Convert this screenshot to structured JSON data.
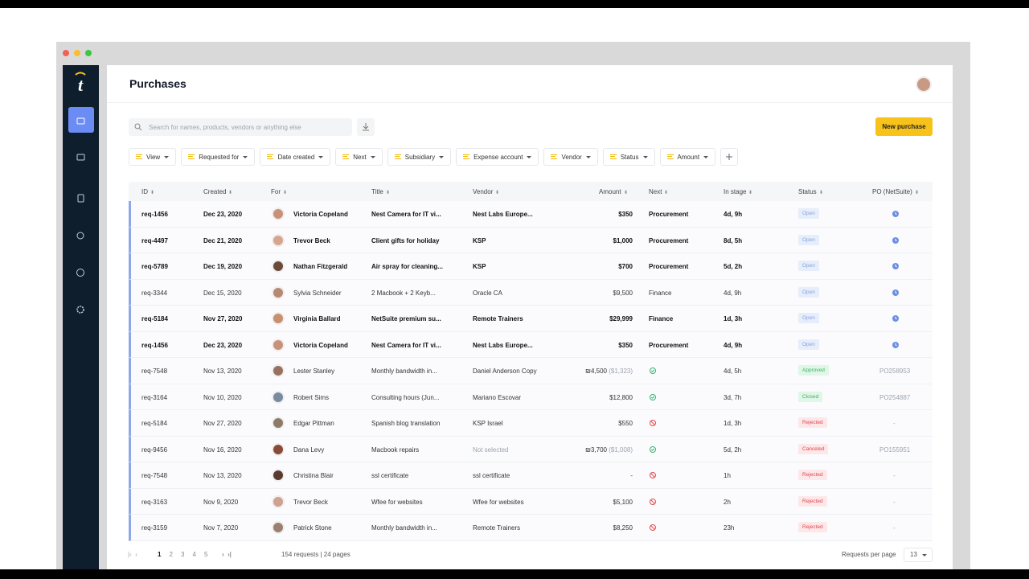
{
  "header": {
    "title": "Purchases"
  },
  "search": {
    "placeholder": "Search for names, products, vendors or anything else"
  },
  "new_button": "New purchase",
  "filters": [
    "View",
    "Requested for",
    "Date created",
    "Next",
    "Subsidiary",
    "Expense account",
    "Vendor",
    "Status",
    "Amount"
  ],
  "table": {
    "columns": [
      "ID",
      "Created",
      "For",
      "Title",
      "Vendor",
      "Amount",
      "Next",
      "In stage",
      "Status",
      "PO (NetSuite)"
    ],
    "rows": [
      {
        "id": "req-1456",
        "created": "Dec 23, 2020",
        "for": "Victoria Copeland",
        "title": "Nest Camera for IT vi...",
        "vendor": "Nest Labs Europe...",
        "amount": "$350",
        "next": "Procurement",
        "in_stage": "4d, 9h",
        "status": "Open"
      },
      {
        "id": "req-4497",
        "created": "Dec 21, 2020",
        "for": "Trevor Beck",
        "title": "Client gifts for holiday",
        "vendor": "KSP",
        "amount": "$1,000",
        "next": "Procurement",
        "in_stage": "8d, 5h",
        "status": "Open"
      },
      {
        "id": "req-5789",
        "created": "Dec 19, 2020",
        "for": "Nathan Fitzgerald",
        "title": "Air spray for cleaning...",
        "vendor": "KSP",
        "amount": "$700",
        "next": "Procurement",
        "in_stage": "5d, 2h",
        "status": "Open"
      },
      {
        "id": "req-3344",
        "created": "Dec 15, 2020",
        "for": "Sylvia Schneider",
        "title": "2 Macbook + 2 Keyb...",
        "vendor": "Oracle CA",
        "amount": "$9,500",
        "next": "Finance",
        "in_stage": "4d, 9h",
        "status": "Open"
      },
      {
        "id": "req-5184",
        "created": "Nov 27, 2020",
        "for": "Virginia Ballard",
        "title": "NetSuite premium su...",
        "vendor": "Remote Trainers",
        "amount": "$29,999",
        "next": "Finance",
        "in_stage": "1d, 3h",
        "status": "Open"
      },
      {
        "id": "req-1456",
        "created": "Dec 23, 2020",
        "for": "Victoria Copeland",
        "title": "Nest Camera for IT vi...",
        "vendor": "Nest Labs Europe...",
        "amount": "$350",
        "next": "Procurement",
        "in_stage": "4d, 9h",
        "status": "Open"
      },
      {
        "id": "req-7548",
        "created": "Nov 13, 2020",
        "for": "Lester Stanley",
        "title": "Monthly bandwidth in...",
        "vendor": "Daniel Anderson Copy",
        "amount": "₪4,500",
        "amount_note": "($1,323)",
        "in_stage": "4d, 5h",
        "status": "Approved",
        "po": "PO258953"
      },
      {
        "id": "req-3164",
        "created": "Nov 10, 2020",
        "for": "Robert Sims",
        "title": "Consulting hours (Jun...",
        "vendor": "Mariano Escovar",
        "amount": "$12,800",
        "in_stage": "3d, 7h",
        "status": "Closed",
        "po": "PO254887"
      },
      {
        "id": "req-5184",
        "created": "Nov 27, 2020",
        "for": "Edgar Pittman",
        "title": "Spanish blog translation",
        "vendor": "KSP Israel",
        "amount": "$550",
        "in_stage": "1d, 3h",
        "status": "Rejected",
        "po": "-"
      },
      {
        "id": "req-9456",
        "created": "Nov 16, 2020",
        "for": "Dana Levy",
        "title": "Macbook repairs",
        "vendor": "Not selected",
        "amount": "₪3,700",
        "amount_note": "($1,008)",
        "in_stage": "5d, 2h",
        "status": "Canceled",
        "po": "PO155951"
      },
      {
        "id": "req-7548",
        "created": "Nov 13, 2020",
        "for": "Christina Blair",
        "title": "ssl certificate",
        "vendor": "ssl certificate",
        "amount": "-",
        "in_stage": "1h",
        "status": "Rejected",
        "po": "-"
      },
      {
        "id": "req-3163",
        "created": "Nov 9, 2020",
        "for": "Trevor Beck",
        "title": "Wfee for websites",
        "vendor": "Wfee for websites",
        "amount": "$5,100",
        "in_stage": "2h",
        "status": "Rejected",
        "po": "-"
      },
      {
        "id": "req-3159",
        "created": "Nov 7, 2020",
        "for": "Patrick Stone",
        "title": "Monthly bandwidth in...",
        "vendor": "Remote Trainers",
        "amount": "$8,250",
        "in_stage": "23h",
        "status": "Rejected",
        "po": "-"
      }
    ]
  },
  "pagination": {
    "pages": [
      "1",
      "2",
      "3",
      "4",
      "5"
    ],
    "summary": "154 requests | 24 pages",
    "per_page_label": "Requests per page",
    "per_page": "13"
  }
}
